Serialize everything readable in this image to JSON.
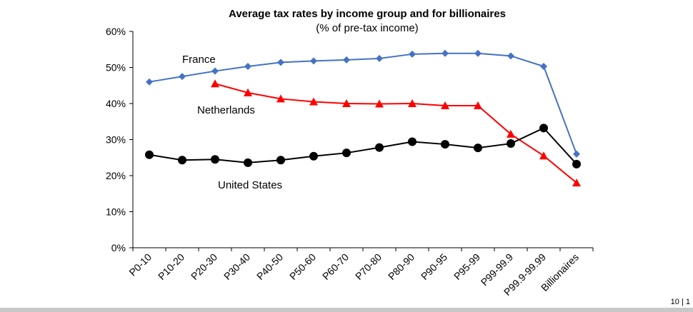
{
  "page_number": "10 | 1",
  "chart_data": {
    "type": "line",
    "title": "Average tax rates by income group and for billionaires",
    "subtitle": "(% of pre-tax income)",
    "categories": [
      "P0-10",
      "P10-20",
      "P20-30",
      "P30-40",
      "P40-50",
      "P50-60",
      "P60-70",
      "P70-80",
      "P80-90",
      "P90-95",
      "P95-99",
      "P99-99.9",
      "P99.9-99.99",
      "Billionaires"
    ],
    "ylim": [
      0,
      60
    ],
    "yticks": [
      "0%",
      "10%",
      "20%",
      "30%",
      "40%",
      "50%",
      "60%"
    ],
    "grid": false,
    "series": [
      {
        "name": "France",
        "color": "#4472c4",
        "marker": "diamond",
        "values": [
          46,
          47.5,
          49,
          50.3,
          51.4,
          51.8,
          52.1,
          52.5,
          53.7,
          53.9,
          53.9,
          53.2,
          50.3,
          26
        ]
      },
      {
        "name": "Netherlands",
        "color": "#ff0000",
        "marker": "triangle",
        "values": [
          null,
          null,
          45.5,
          43,
          41.3,
          40.5,
          40,
          39.9,
          40,
          39.4,
          39.4,
          31.5,
          25.5,
          18
        ]
      },
      {
        "name": "United States",
        "color": "#000000",
        "marker": "circle",
        "values": [
          25.8,
          24.3,
          24.5,
          23.6,
          24.3,
          25.4,
          26.3,
          27.8,
          29.4,
          28.7,
          27.7,
          28.9,
          33.2,
          23.2
        ]
      }
    ],
    "annotations": [
      "France",
      "Netherlands",
      "United States"
    ]
  }
}
